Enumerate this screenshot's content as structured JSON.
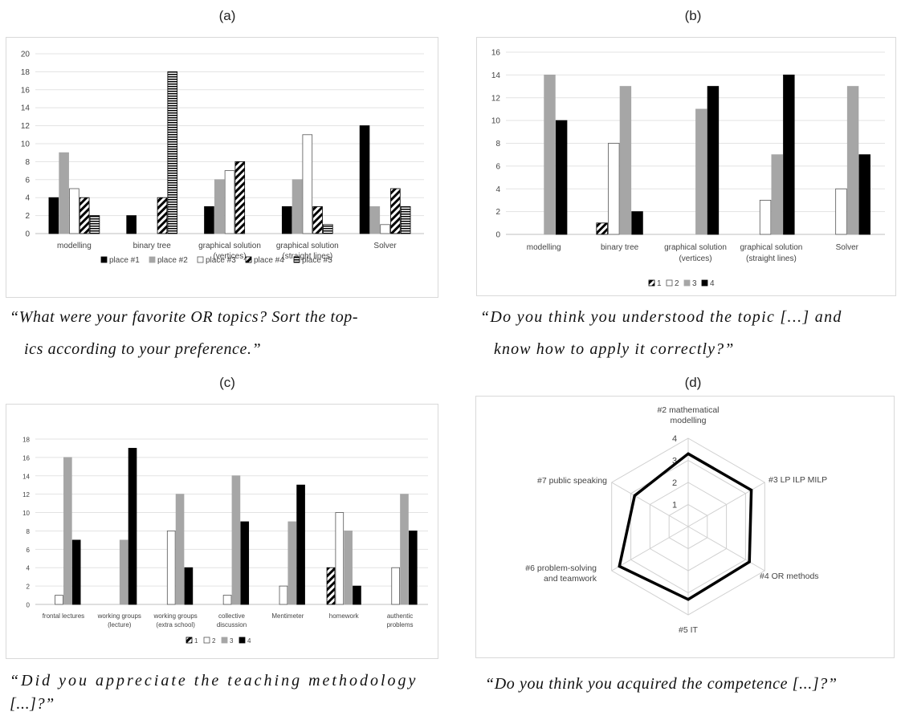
{
  "panels": {
    "a": {
      "label": "(a)",
      "caption_line1": "“What were your favorite OR topics? Sort the top-",
      "caption_line2": "ics according to your preference.”"
    },
    "b": {
      "label": "(b)",
      "caption_line1": "“Do you think you understood the topic [...] and",
      "caption_line2": "know how to apply it correctly?”"
    },
    "c": {
      "label": "(c)",
      "caption_line1": "“Did you appreciate the teaching methodology",
      "caption_line2": "[...]?”"
    },
    "d": {
      "label": "(d)",
      "caption_line1": "“Do you think you acquired the competence [...]?”"
    }
  },
  "chart_data": [
    {
      "id": "a",
      "type": "bar",
      "categories": [
        [
          "modelling"
        ],
        [
          "binary tree"
        ],
        [
          "graphical solution",
          "(vertices)"
        ],
        [
          "graphical solution",
          "(straight lines)"
        ],
        [
          "Solver"
        ]
      ],
      "series": [
        {
          "name": "place #1",
          "values": [
            4,
            2,
            3,
            3,
            12
          ],
          "pattern": "black"
        },
        {
          "name": "place #2",
          "values": [
            9,
            0,
            6,
            6,
            3
          ],
          "pattern": "gray"
        },
        {
          "name": "place #3",
          "values": [
            5,
            0,
            7,
            11,
            1
          ],
          "pattern": "white"
        },
        {
          "name": "place #4",
          "values": [
            4,
            4,
            8,
            3,
            5
          ],
          "pattern": "diag"
        },
        {
          "name": "place #5",
          "values": [
            2,
            18,
            0,
            1,
            3
          ],
          "pattern": "horiz"
        }
      ],
      "ylim": [
        0,
        20
      ],
      "yticks": [
        0,
        2,
        4,
        6,
        8,
        10,
        12,
        14,
        16,
        18,
        20
      ],
      "grid": true,
      "legend": "bottom"
    },
    {
      "id": "b",
      "type": "bar",
      "categories": [
        [
          "modelling"
        ],
        [
          "binary tree"
        ],
        [
          "graphical solution",
          "(vertices)"
        ],
        [
          "graphical solution",
          "(straight lines)"
        ],
        [
          "Solver"
        ]
      ],
      "series": [
        {
          "name": "1",
          "values": [
            0,
            1,
            0,
            0,
            0
          ],
          "pattern": "diag"
        },
        {
          "name": "2",
          "values": [
            0,
            8,
            0,
            3,
            4
          ],
          "pattern": "white"
        },
        {
          "name": "3",
          "values": [
            14,
            13,
            11,
            7,
            13
          ],
          "pattern": "gray"
        },
        {
          "name": "4",
          "values": [
            10,
            2,
            13,
            14,
            7
          ],
          "pattern": "black"
        }
      ],
      "ylim": [
        0,
        16
      ],
      "yticks": [
        0,
        2,
        4,
        6,
        8,
        10,
        12,
        14,
        16
      ],
      "grid": true,
      "legend": "bottom"
    },
    {
      "id": "c",
      "type": "bar",
      "categories": [
        [
          "frontal lectures"
        ],
        [
          "working groups",
          "(lecture)"
        ],
        [
          "working groups",
          "(extra school)"
        ],
        [
          "collective",
          "discussion"
        ],
        [
          "Mentimeter"
        ],
        [
          "homework"
        ],
        [
          "authentic",
          "problems"
        ]
      ],
      "series": [
        {
          "name": "1",
          "values": [
            0,
            0,
            0,
            0,
            0,
            4,
            0
          ],
          "pattern": "diag"
        },
        {
          "name": "2",
          "values": [
            1,
            0,
            8,
            1,
            2,
            10,
            4
          ],
          "pattern": "white"
        },
        {
          "name": "3",
          "values": [
            16,
            7,
            12,
            14,
            9,
            8,
            12
          ],
          "pattern": "gray"
        },
        {
          "name": "4",
          "values": [
            7,
            17,
            4,
            9,
            13,
            2,
            8
          ],
          "pattern": "black"
        }
      ],
      "ylim": [
        0,
        18
      ],
      "yticks": [
        0,
        2,
        4,
        6,
        8,
        10,
        12,
        14,
        16,
        18
      ],
      "grid": true,
      "legend": "bottom"
    },
    {
      "id": "d",
      "type": "radar",
      "axes": [
        [
          "#2 mathematical",
          "modelling"
        ],
        [
          "#3 LP ILP MILP"
        ],
        [
          "#4 OR methods"
        ],
        [
          "#5  IT"
        ],
        [
          "#6 problem-solving",
          "and teamwork"
        ],
        [
          "#7 public speaking"
        ]
      ],
      "values": [
        3.3,
        3.3,
        3.2,
        3.3,
        3.6,
        2.8
      ],
      "rlim": [
        0,
        4
      ],
      "rticks": [
        1,
        2,
        3,
        4
      ],
      "rtick_labels": [
        "1",
        "2",
        "3",
        "4"
      ]
    }
  ]
}
